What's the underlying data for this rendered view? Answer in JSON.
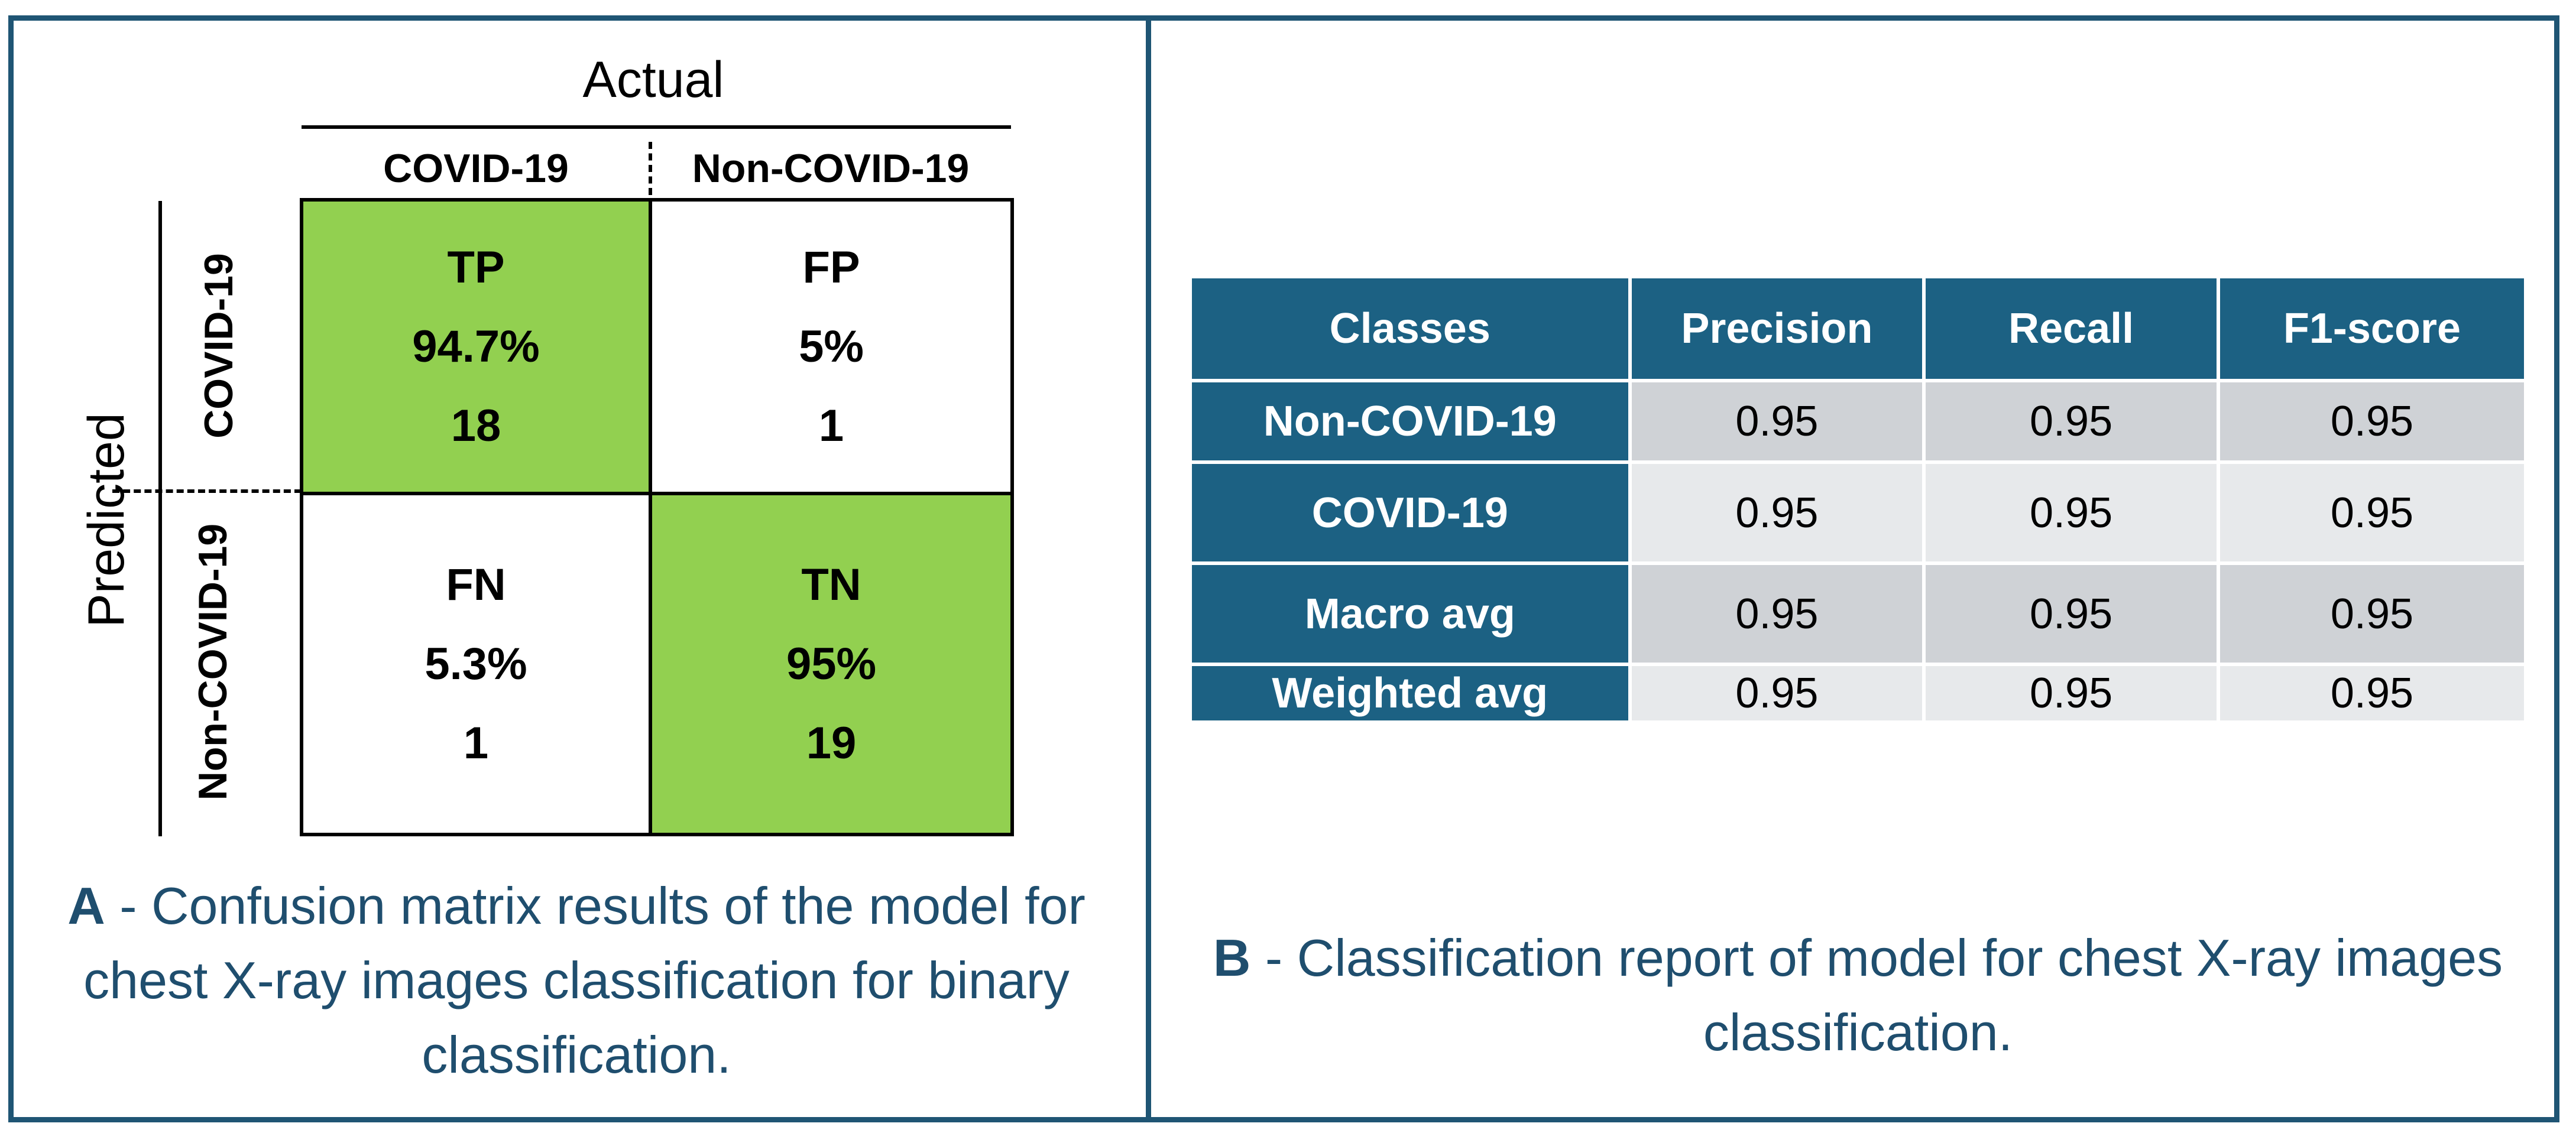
{
  "confusion_matrix": {
    "axis_actual": "Actual",
    "axis_predicted": "Predicted",
    "columns": [
      "COVID-19",
      "Non-COVID-19"
    ],
    "rows": [
      "COVID-19",
      "Non-COVID-19"
    ],
    "cells": [
      [
        {
          "label": "TP",
          "percent": "94.7%",
          "count": "18"
        },
        {
          "label": "FP",
          "percent": "5%",
          "count": "1"
        }
      ],
      [
        {
          "label": "FN",
          "percent": "5.3%",
          "count": "1"
        },
        {
          "label": "TN",
          "percent": "95%",
          "count": "19"
        }
      ]
    ],
    "highlight_color": "#92d050"
  },
  "caption_a": {
    "letter": "A",
    "text": " - Confusion matrix results of the model for chest X-ray images classification for binary classification."
  },
  "report": {
    "headers": [
      "Classes",
      "Precision",
      "Recall",
      "F1-score"
    ],
    "rows": [
      {
        "name": "Non-COVID-19",
        "values": [
          "0.95",
          "0.95",
          "0.95"
        ]
      },
      {
        "name": "COVID-19",
        "values": [
          "0.95",
          "0.95",
          "0.95"
        ]
      },
      {
        "name": "Macro avg",
        "values": [
          "0.95",
          "0.95",
          "0.95"
        ]
      },
      {
        "name": "Weighted avg",
        "values": [
          "0.95",
          "0.95",
          "0.95"
        ]
      }
    ],
    "header_color": "#1c6183"
  },
  "caption_b": {
    "letter": "B",
    "text": " - Classification report of model for chest X-ray images classification."
  }
}
